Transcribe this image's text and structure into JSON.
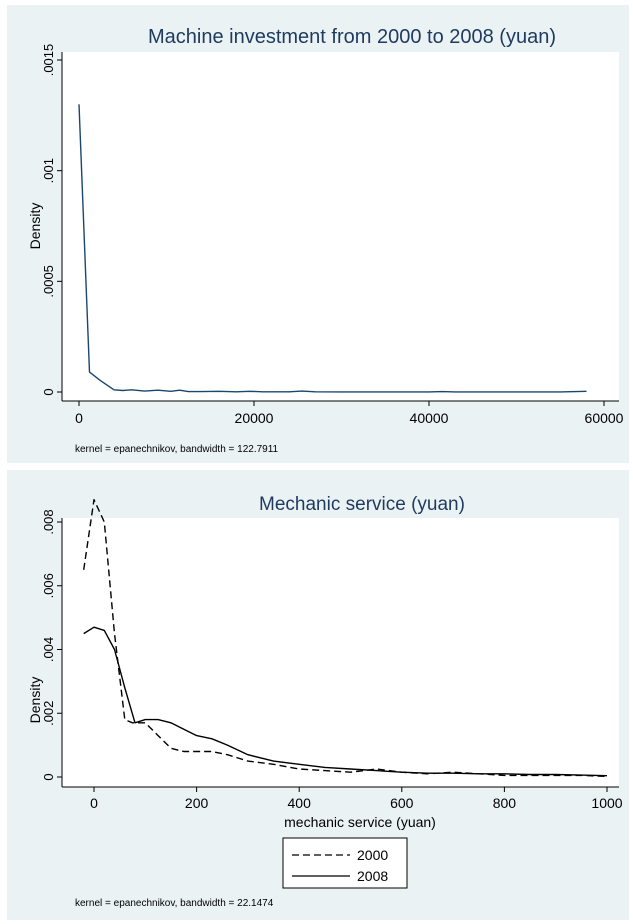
{
  "colors": {
    "panel_bg": "#eaf2f3",
    "plot_bg": "#ffffff",
    "title": "#1e3a5f",
    "line_top": "#1a476f",
    "axis": "#000000"
  },
  "chart_data": [
    {
      "type": "line",
      "title": "Machine investment from 2000 to 2008 (yuan)",
      "xlabel": "",
      "ylabel": "Density",
      "xlim": [
        0,
        60000
      ],
      "ylim": [
        0,
        0.0015
      ],
      "x_ticks": [
        0,
        20000,
        40000,
        60000
      ],
      "x_tick_labels": [
        "0",
        "20000",
        "40000",
        "60000"
      ],
      "y_ticks": [
        0,
        0.0005,
        0.001,
        0.0015
      ],
      "y_tick_labels": [
        "0",
        ".0005",
        ".001",
        ".0015"
      ],
      "grid": false,
      "note": "kernel = epanechnikov, bandwidth = 122.7911",
      "series": [
        {
          "x": [
            0,
            1200,
            2500,
            4000,
            5000,
            6000,
            7500,
            9000,
            10500,
            11500,
            12500,
            14000,
            16000,
            18000,
            19500,
            21000,
            24000,
            25500,
            27000,
            30000,
            35000,
            40000,
            41500,
            43000,
            50000,
            55000,
            58000
          ],
          "y": [
            0.0013,
            9e-05,
            5e-05,
            1e-05,
            7e-06,
            1e-05,
            4e-06,
            8e-06,
            3e-06,
            8e-06,
            2e-06,
            2e-06,
            3e-06,
            1e-06,
            3e-06,
            1e-06,
            1e-06,
            4e-06,
            1e-06,
            5e-07,
            5e-07,
            5e-07,
            2e-06,
            5e-07,
            5e-07,
            5e-07,
            3e-06
          ]
        }
      ]
    },
    {
      "type": "line",
      "title": "Mechanic service (yuan)",
      "xlabel": "mechanic service (yuan)",
      "ylabel": "Density",
      "xlim": [
        -20,
        1000
      ],
      "ylim": [
        0,
        0.008
      ],
      "x_ticks": [
        0,
        200,
        400,
        600,
        800,
        1000
      ],
      "x_tick_labels": [
        "0",
        "200",
        "400",
        "600",
        "800",
        "1000"
      ],
      "y_ticks": [
        0,
        0.002,
        0.004,
        0.006,
        0.008
      ],
      "y_tick_labels": [
        "0",
        ".002",
        ".004",
        ".006",
        ".008"
      ],
      "grid": false,
      "legend_position": "bottom",
      "note": "kernel = epanechnikov, bandwidth = 22.1474",
      "series": [
        {
          "name": "2000",
          "dash": true,
          "x": [
            -20,
            0,
            20,
            40,
            60,
            75,
            100,
            125,
            150,
            175,
            200,
            230,
            260,
            300,
            350,
            400,
            450,
            500,
            550,
            600,
            650,
            700,
            750,
            800,
            850,
            900,
            950,
            1000
          ],
          "y": [
            0.0065,
            0.0087,
            0.008,
            0.0045,
            0.0018,
            0.0017,
            0.0017,
            0.0013,
            0.0009,
            0.0008,
            0.0008,
            0.0008,
            0.0007,
            0.0005,
            0.0004,
            0.00025,
            0.0002,
            0.00015,
            0.00025,
            0.00015,
            0.0001,
            0.00015,
            0.0001,
            5e-05,
            5e-05,
            5e-05,
            5e-05,
            2e-05
          ]
        },
        {
          "name": "2008",
          "dash": false,
          "x": [
            -20,
            0,
            20,
            40,
            60,
            80,
            100,
            125,
            150,
            175,
            200,
            230,
            260,
            300,
            350,
            400,
            450,
            500,
            550,
            600,
            650,
            700,
            750,
            800,
            850,
            900,
            950,
            1000
          ],
          "y": [
            0.0045,
            0.0047,
            0.0046,
            0.004,
            0.0028,
            0.0017,
            0.0018,
            0.0018,
            0.0017,
            0.0015,
            0.0013,
            0.0012,
            0.001,
            0.0007,
            0.0005,
            0.0004,
            0.0003,
            0.00025,
            0.0002,
            0.00015,
            0.00012,
            0.00012,
            0.0001,
            0.0001,
            8e-05,
            8e-05,
            6e-05,
            4e-05
          ]
        }
      ]
    }
  ]
}
